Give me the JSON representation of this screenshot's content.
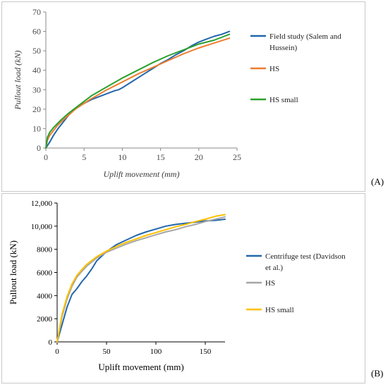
{
  "panels": [
    {
      "letter": "(A)"
    },
    {
      "letter": "(B)"
    }
  ],
  "chart_data": [
    {
      "type": "line",
      "xlabel": "Uplift movement (mm)",
      "ylabel": "Pullout load (kN)",
      "xlim": [
        0,
        25
      ],
      "ylim": [
        0,
        70
      ],
      "xticks": [
        0,
        5,
        10,
        15,
        20,
        25
      ],
      "yticks": [
        0,
        10,
        20,
        30,
        40,
        50,
        60,
        70
      ],
      "grid": false,
      "legend_position": "right",
      "series": [
        {
          "name": "Field study (Salem and Hussein)",
          "color": "#2166ac",
          "x": [
            0,
            0.5,
            1,
            1.5,
            2,
            2.5,
            3,
            3.5,
            4,
            5,
            6,
            7,
            8,
            9,
            9.5,
            10,
            11,
            12,
            13,
            14,
            15,
            16,
            17,
            18,
            19,
            20,
            21,
            22,
            23,
            24
          ],
          "y": [
            0,
            3,
            6.5,
            9.5,
            12,
            14.5,
            17,
            19.5,
            20.5,
            23,
            25,
            26.5,
            28,
            29.5,
            30,
            31,
            33.5,
            36,
            38.5,
            41,
            43.5,
            45.5,
            48,
            50,
            52.5,
            54.5,
            56,
            57.5,
            58.5,
            60
          ]
        },
        {
          "name": "HS",
          "color": "#ed7d31",
          "x": [
            0,
            0.2,
            0.5,
            1,
            1.5,
            2,
            3,
            4,
            5,
            6,
            8,
            10,
            12,
            14,
            16,
            18,
            20,
            22,
            24
          ],
          "y": [
            0,
            4,
            6.5,
            9,
            11.5,
            13.5,
            17,
            20.5,
            23,
            25.5,
            30,
            34,
            38,
            41.5,
            45,
            48.5,
            51.5,
            54,
            56.5
          ]
        },
        {
          "name": "HS small",
          "color": "#2ca02c",
          "x": [
            0,
            0.2,
            0.5,
            1,
            1.5,
            2,
            3,
            4,
            5,
            6,
            8,
            10,
            12,
            14,
            16,
            18,
            20,
            22,
            24
          ],
          "y": [
            0,
            5.5,
            8,
            10.5,
            12.5,
            14.5,
            18,
            21,
            24,
            27,
            31.5,
            36,
            40,
            44,
            47.5,
            50.5,
            53.5,
            55.5,
            58.5
          ]
        }
      ]
    },
    {
      "type": "line",
      "xlabel": "Uplift movement (mm)",
      "ylabel": "Pullout load (kN)",
      "xlim": [
        0,
        170
      ],
      "ylim": [
        0,
        12000
      ],
      "xticks": [
        0,
        50,
        100,
        150
      ],
      "xtick_labels": [
        "0",
        "50",
        "100",
        "150"
      ],
      "yticks": [
        0,
        2000,
        4000,
        6000,
        8000,
        10000,
        12000
      ],
      "ytick_labels": [
        "0",
        "2000",
        "4000",
        "6000",
        "8000",
        "10,000",
        "12,000"
      ],
      "grid": false,
      "legend_position": "right",
      "series": [
        {
          "name": "Centrifuge  test (Davidson et al.)",
          "color": "#2166ac",
          "x": [
            0,
            5,
            10,
            15,
            20,
            25,
            30,
            35,
            40,
            50,
            60,
            70,
            80,
            90,
            100,
            110,
            120,
            130,
            140,
            150,
            160,
            170
          ],
          "y": [
            0,
            1500,
            3000,
            4100,
            4600,
            5200,
            5700,
            6300,
            7000,
            7800,
            8400,
            8800,
            9200,
            9500,
            9750,
            10000,
            10150,
            10250,
            10350,
            10450,
            10500,
            10600
          ]
        },
        {
          "name": "HS",
          "color": "#a6a6a6",
          "x": [
            0,
            5,
            10,
            15,
            20,
            25,
            30,
            40,
            50,
            60,
            70,
            80,
            90,
            100,
            110,
            120,
            130,
            140,
            150,
            160,
            170
          ],
          "y": [
            0,
            2200,
            3700,
            4800,
            5600,
            6100,
            6550,
            7250,
            7750,
            8100,
            8450,
            8750,
            9000,
            9250,
            9500,
            9700,
            9950,
            10150,
            10400,
            10600,
            10800
          ]
        },
        {
          "name": "HS small",
          "color": "#ffc000",
          "x": [
            0,
            5,
            10,
            15,
            20,
            25,
            30,
            40,
            50,
            60,
            70,
            80,
            90,
            100,
            110,
            120,
            130,
            140,
            150,
            160,
            170
          ],
          "y": [
            0,
            2400,
            3900,
            5000,
            5750,
            6250,
            6700,
            7350,
            7850,
            8250,
            8600,
            8900,
            9200,
            9450,
            9700,
            9950,
            10150,
            10400,
            10600,
            10850,
            11000
          ]
        }
      ]
    }
  ]
}
